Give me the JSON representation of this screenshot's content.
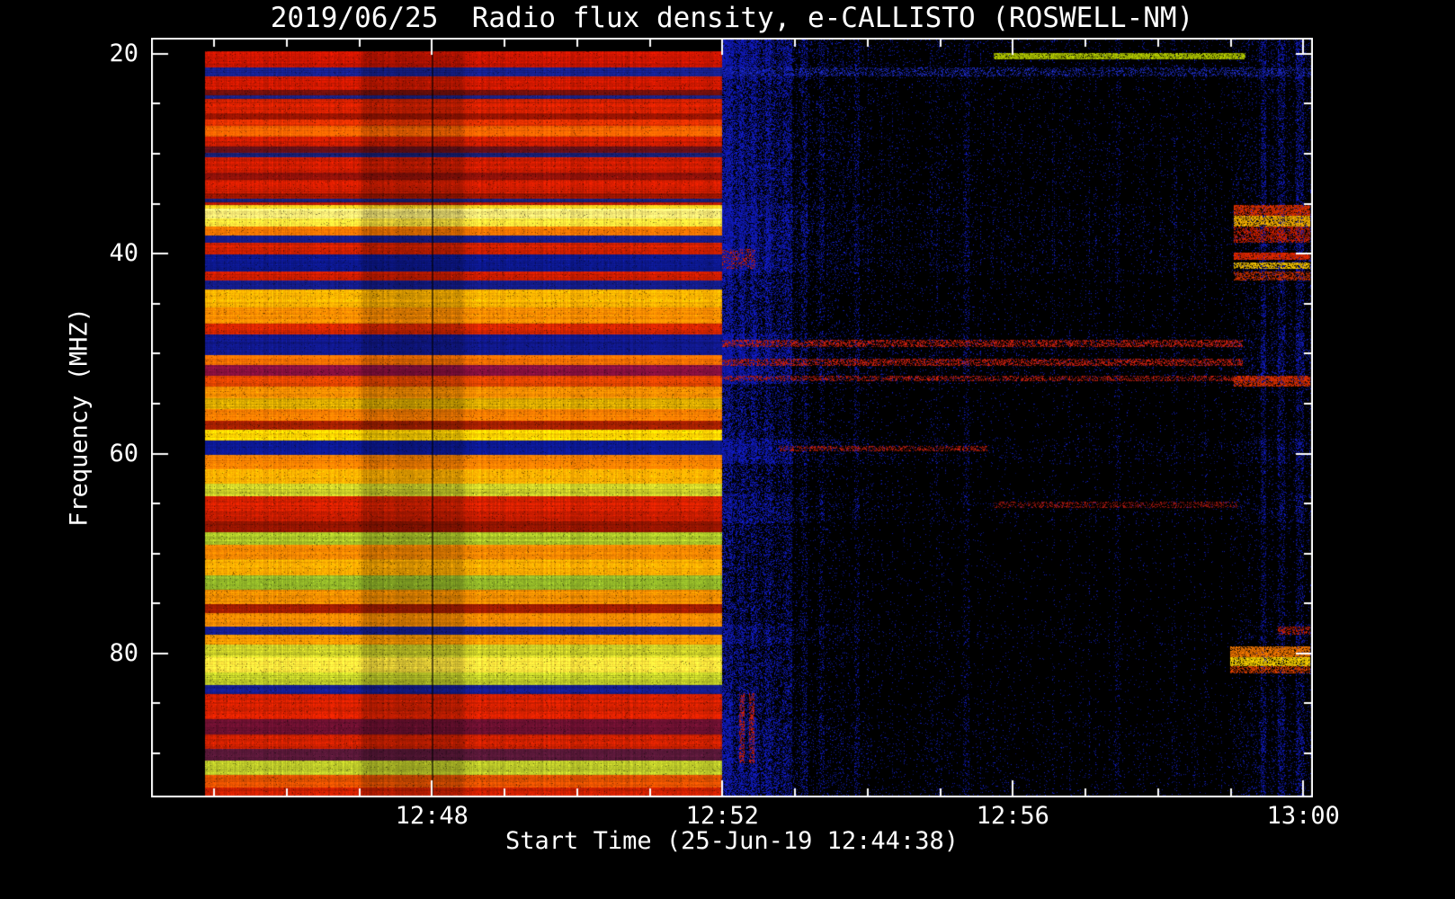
{
  "title": "2019/06/25  Radio flux density, e-CALLISTO (ROSWELL-NM)",
  "chart_data": {
    "type": "heatmap",
    "title": "2019/06/25  Radio flux density, e-CALLISTO (ROSWELL-NM)",
    "xlabel": "Start Time (25-Jun-19 12:44:38)",
    "ylabel": "Frequency (MHZ)",
    "instrument": "e-CALLISTO (ROSWELL-NM)",
    "start_time": "25-Jun-19 12:44:38",
    "freq_range": [
      18.4,
      94.4
    ],
    "x_ticks": [
      {
        "x": 0.2417,
        "label": "12:48"
      },
      {
        "x": 0.4917,
        "label": "12:52"
      },
      {
        "x": 0.7417,
        "label": "12:56"
      },
      {
        "x": 0.9917,
        "label": "13:00"
      }
    ],
    "x_minor": [
      0.0542,
      0.1167,
      0.1792,
      0.3042,
      0.3667,
      0.4292,
      0.5542,
      0.6167,
      0.6792,
      0.8042,
      0.8667,
      0.9292
    ],
    "y_ticks": [
      {
        "f": 20,
        "label": "20"
      },
      {
        "f": 40,
        "label": "40"
      },
      {
        "f": 60,
        "label": "60"
      },
      {
        "f": 80,
        "label": "80"
      }
    ],
    "y_minor_freqs": [
      25,
      30,
      35,
      45,
      50,
      55,
      65,
      70,
      75,
      85,
      90
    ],
    "data_start": 0.0464,
    "transition": 0.4917,
    "dark_patch": {
      "x": [
        0.18,
        0.27
      ],
      "factor": 0.82
    },
    "dark_line_x": 0.2417,
    "left_bands": [
      {
        "f": [
          19.75,
          21.35
        ],
        "c": "#c81400"
      },
      {
        "f": [
          21.35,
          22.25
        ],
        "c": "#16208c"
      },
      {
        "f": [
          22.25,
          23.6
        ],
        "c": "#cc1800"
      },
      {
        "f": [
          23.6,
          24.15
        ],
        "c": "#78100c"
      },
      {
        "f": [
          24.15,
          24.5
        ],
        "c": "#1a2080"
      },
      {
        "f": [
          24.5,
          25.95
        ],
        "c": "#d42000"
      },
      {
        "f": [
          25.95,
          26.55
        ],
        "c": "#a01400"
      },
      {
        "f": [
          26.55,
          27.2
        ],
        "c": "#e03000"
      },
      {
        "f": [
          27.2,
          28.25
        ],
        "c": "#f86400"
      },
      {
        "f": [
          28.25,
          29.25
        ],
        "c": "#cc1c00"
      },
      {
        "f": [
          29.25,
          29.9
        ],
        "c": "#641018"
      },
      {
        "f": [
          29.9,
          30.35
        ],
        "c": "#182078"
      },
      {
        "f": [
          30.35,
          31.85
        ],
        "c": "#d01c00"
      },
      {
        "f": [
          31.85,
          32.6
        ],
        "c": "#8c1008"
      },
      {
        "f": [
          32.6,
          33.95
        ],
        "c": "#cc1c00"
      },
      {
        "f": [
          33.95,
          34.5
        ],
        "c": "#981400"
      },
      {
        "f": [
          34.5,
          34.85
        ],
        "c": "#182078"
      },
      {
        "f": [
          34.85,
          35.1
        ],
        "c": "#b41800"
      },
      {
        "f": [
          35.1,
          35.5
        ],
        "c": "#ffd820"
      },
      {
        "f": [
          35.5,
          36.5
        ],
        "c": "#fff17a"
      },
      {
        "f": [
          36.5,
          37.25
        ],
        "c": "#ffe63c"
      },
      {
        "f": [
          37.25,
          38.15
        ],
        "c": "#f87800"
      },
      {
        "f": [
          38.15,
          38.9
        ],
        "c": "#141c8c"
      },
      {
        "f": [
          38.9,
          40.05
        ],
        "c": "#d42000"
      },
      {
        "f": [
          40.05,
          41.75
        ],
        "c": "#0c1890"
      },
      {
        "f": [
          41.75,
          42.65
        ],
        "c": "#cc1c00"
      },
      {
        "f": [
          42.65,
          43.55
        ],
        "c": "#141c8c"
      },
      {
        "f": [
          43.55,
          45.35
        ],
        "c": "#ffb400"
      },
      {
        "f": [
          45.35,
          47.0
        ],
        "c": "#fc8c00"
      },
      {
        "f": [
          47.0,
          48.05
        ],
        "c": "#d02400"
      },
      {
        "f": [
          48.05,
          50.15
        ],
        "c": "#10188c"
      },
      {
        "f": [
          50.15,
          51.15
        ],
        "c": "#f87000"
      },
      {
        "f": [
          51.15,
          52.2
        ],
        "c": "#8c1040"
      },
      {
        "f": [
          52.2,
          53.3
        ],
        "c": "#e04400"
      },
      {
        "f": [
          53.3,
          54.45
        ],
        "c": "#fc9000"
      },
      {
        "f": [
          54.45,
          55.55
        ],
        "c": "#d8a800"
      },
      {
        "f": [
          55.55,
          56.7
        ],
        "c": "#f87c00"
      },
      {
        "f": [
          56.7,
          57.6
        ],
        "c": "#a82000"
      },
      {
        "f": [
          57.6,
          58.7
        ],
        "c": "#ffd200"
      },
      {
        "f": [
          58.7,
          60.1
        ],
        "c": "#0c1890"
      },
      {
        "f": [
          60.1,
          61.55
        ],
        "c": "#f88000"
      },
      {
        "f": [
          61.55,
          63.0
        ],
        "c": "#ffb000"
      },
      {
        "f": [
          63.0,
          64.25
        ],
        "c": "#c8cc28"
      },
      {
        "f": [
          64.25,
          65.7
        ],
        "c": "#d42000"
      },
      {
        "f": [
          65.7,
          66.75
        ],
        "c": "#c81c00"
      },
      {
        "f": [
          66.75,
          67.85
        ],
        "c": "#901400"
      },
      {
        "f": [
          67.85,
          69.1
        ],
        "c": "#aac428"
      },
      {
        "f": [
          69.1,
          70.55
        ],
        "c": "#f88800"
      },
      {
        "f": [
          70.55,
          72.15
        ],
        "c": "#ffac00"
      },
      {
        "f": [
          72.15,
          73.6
        ],
        "c": "#90b428"
      },
      {
        "f": [
          73.6,
          75.05
        ],
        "c": "#f89000"
      },
      {
        "f": [
          75.05,
          75.95
        ],
        "c": "#a01c00"
      },
      {
        "f": [
          75.95,
          77.3
        ],
        "c": "#f88c00"
      },
      {
        "f": [
          77.3,
          78.1
        ],
        "c": "#141c8c"
      },
      {
        "f": [
          78.1,
          79.1
        ],
        "c": "#f89800"
      },
      {
        "f": [
          79.1,
          80.35
        ],
        "c": "#ccd028"
      },
      {
        "f": [
          80.35,
          81.9
        ],
        "c": "#ffe63c"
      },
      {
        "f": [
          81.9,
          83.15
        ],
        "c": "#c0cc28"
      },
      {
        "f": [
          83.15,
          84.05
        ],
        "c": "#141c8c"
      },
      {
        "f": [
          84.05,
          86.55
        ],
        "c": "#d42000"
      },
      {
        "f": [
          86.55,
          88.1
        ],
        "c": "#6c1030"
      },
      {
        "f": [
          88.1,
          89.55
        ],
        "c": "#cc2000"
      },
      {
        "f": [
          89.55,
          90.7
        ],
        "c": "#581838"
      },
      {
        "f": [
          90.7,
          92.15
        ],
        "c": "#b4c028"
      },
      {
        "f": [
          92.15,
          93.4
        ],
        "c": "#e05000"
      },
      {
        "f": [
          93.4,
          94.4
        ],
        "c": "#cc2000"
      }
    ],
    "right_row_weights": [
      {
        "f": [
          18.4,
          22.5
        ],
        "w": 0.7
      },
      {
        "f": [
          22.5,
          28.0
        ],
        "w": 0.45
      },
      {
        "f": [
          28.0,
          35.0
        ],
        "w": 0.55
      },
      {
        "f": [
          35.0,
          42.0
        ],
        "w": 0.8
      },
      {
        "f": [
          42.0,
          48.0
        ],
        "w": 0.45
      },
      {
        "f": [
          48.0,
          53.0
        ],
        "w": 0.8
      },
      {
        "f": [
          53.0,
          58.5
        ],
        "w": 0.3
      },
      {
        "f": [
          58.5,
          61.0
        ],
        "w": 0.7
      },
      {
        "f": [
          61.0,
          64.0
        ],
        "w": 0.25
      },
      {
        "f": [
          64.0,
          67.0
        ],
        "w": 0.5
      },
      {
        "f": [
          67.0,
          77.0
        ],
        "w": 0.22
      },
      {
        "f": [
          77.0,
          79.0
        ],
        "w": 0.5
      },
      {
        "f": [
          79.0,
          84.0
        ],
        "w": 0.3
      },
      {
        "f": [
          84.0,
          86.5
        ],
        "w": 0.35
      },
      {
        "f": [
          86.5,
          94.4
        ],
        "w": 0.55
      }
    ],
    "right_col_profile": [
      {
        "x": [
          0.4917,
          0.5
        ],
        "a": 0.85,
        "b": 0.8
      },
      {
        "x": [
          0.5,
          0.56
        ],
        "a": 0.6,
        "b": 0.3
      },
      {
        "x": [
          0.56,
          0.62
        ],
        "a": 0.3,
        "b": 0.15
      },
      {
        "x": [
          0.62,
          0.75
        ],
        "a": 0.12,
        "b": 0.09
      },
      {
        "x": [
          0.75,
          0.93
        ],
        "a": 0.08,
        "b": 0.07
      },
      {
        "x": [
          0.93,
          1.001
        ],
        "a": 0.18,
        "b": 0.3
      }
    ],
    "vertical_streaks": [
      {
        "x": [
          0.4917,
          0.501
        ],
        "v": 0.9
      },
      {
        "x": [
          0.501,
          0.5065
        ],
        "v": 0.55
      },
      {
        "x": [
          0.5065,
          0.511
        ],
        "v": 0.85
      },
      {
        "x": [
          0.511,
          0.5165
        ],
        "v": 0.45
      },
      {
        "x": [
          0.5165,
          0.5215
        ],
        "v": 0.8
      },
      {
        "x": [
          0.5215,
          0.529
        ],
        "v": 0.4
      },
      {
        "x": [
          0.529,
          0.534
        ],
        "v": 0.7
      },
      {
        "x": [
          0.534,
          0.544
        ],
        "v": 0.35
      },
      {
        "x": [
          0.544,
          0.552
        ],
        "v": 0.55
      },
      {
        "x": [
          0.56,
          0.565
        ],
        "v": 0.3
      },
      {
        "x": [
          0.575,
          0.58
        ],
        "v": 0.25
      },
      {
        "x": [
          0.605,
          0.61
        ],
        "v": 0.2
      },
      {
        "x": [
          0.7,
          0.704
        ],
        "v": 0.18
      },
      {
        "x": [
          0.83,
          0.834
        ],
        "v": 0.15
      },
      {
        "x": [
          0.955,
          0.96
        ],
        "v": 0.45
      },
      {
        "x": [
          0.97,
          0.976
        ],
        "v": 0.4
      },
      {
        "x": [
          0.985,
          0.992
        ],
        "v": 0.45
      }
    ],
    "features": [
      {
        "x": [
          0.7252,
          0.942
        ],
        "f": [
          19.9,
          20.6
        ],
        "c": "#b4cc00",
        "d": 0.9
      },
      {
        "x": [
          0.4917,
          0.998
        ],
        "f": [
          21.35,
          22.25
        ],
        "c": "#2030d0",
        "d": 0.3
      },
      {
        "x": [
          0.9319,
          0.998
        ],
        "f": [
          35.1,
          36.2
        ],
        "c": "#e03000",
        "d": 0.8
      },
      {
        "x": [
          0.9319,
          0.998
        ],
        "f": [
          36.2,
          37.3
        ],
        "c": "#ffb400",
        "d": 0.8
      },
      {
        "x": [
          0.9319,
          0.998
        ],
        "f": [
          37.3,
          38.9
        ],
        "c": "#d42000",
        "d": 0.6
      },
      {
        "x": [
          0.9319,
          0.998
        ],
        "f": [
          39.9,
          40.6
        ],
        "c": "#e82800",
        "d": 0.9
      },
      {
        "x": [
          0.9319,
          0.998
        ],
        "f": [
          40.9,
          41.5
        ],
        "c": "#ffc800",
        "d": 0.75
      },
      {
        "x": [
          0.9319,
          0.998
        ],
        "f": [
          41.8,
          42.7
        ],
        "c": "#d03000",
        "d": 0.55
      },
      {
        "x": [
          0.4917,
          0.94
        ],
        "f": [
          48.6,
          49.3
        ],
        "c": "#d02010",
        "d": 0.5
      },
      {
        "x": [
          0.4917,
          0.94
        ],
        "f": [
          50.5,
          51.2
        ],
        "c": "#d02010",
        "d": 0.5
      },
      {
        "x": [
          0.4917,
          0.998
        ],
        "f": [
          52.2,
          52.8
        ],
        "c": "#cc2010",
        "d": 0.4
      },
      {
        "x": [
          0.9319,
          0.998
        ],
        "f": [
          52.2,
          53.3
        ],
        "c": "#e03000",
        "d": 0.7
      },
      {
        "x": [
          0.54,
          0.72
        ],
        "f": [
          59.2,
          59.8
        ],
        "c": "#c82010",
        "d": 0.4
      },
      {
        "x": [
          0.7252,
          0.935
        ],
        "f": [
          64.8,
          65.4
        ],
        "c": "#b01810",
        "d": 0.35
      },
      {
        "x": [
          0.97,
          0.998
        ],
        "f": [
          77.3,
          78.1
        ],
        "c": "#cc2000",
        "d": 0.55
      },
      {
        "x": [
          0.929,
          0.998
        ],
        "f": [
          79.3,
          80.4
        ],
        "c": "#f87800",
        "d": 0.85
      },
      {
        "x": [
          0.929,
          0.998
        ],
        "f": [
          80.4,
          81.3
        ],
        "c": "#ffd200",
        "d": 0.85
      },
      {
        "x": [
          0.929,
          0.998
        ],
        "f": [
          81.3,
          82.0
        ],
        "c": "#e04000",
        "d": 0.6
      },
      {
        "x": [
          0.506,
          0.511
        ],
        "f": [
          84.0,
          91.0
        ],
        "c": "#d02010",
        "d": 0.5
      },
      {
        "x": [
          0.515,
          0.519
        ],
        "f": [
          84.0,
          91.0
        ],
        "c": "#d02010",
        "d": 0.45
      },
      {
        "x": [
          0.4917,
          0.52
        ],
        "f": [
          39.5,
          41.5
        ],
        "c": "#cc2010",
        "d": 0.3
      }
    ],
    "colors": {
      "background": "#000000",
      "axes": "#ffffff",
      "text": "#ffffff"
    }
  }
}
